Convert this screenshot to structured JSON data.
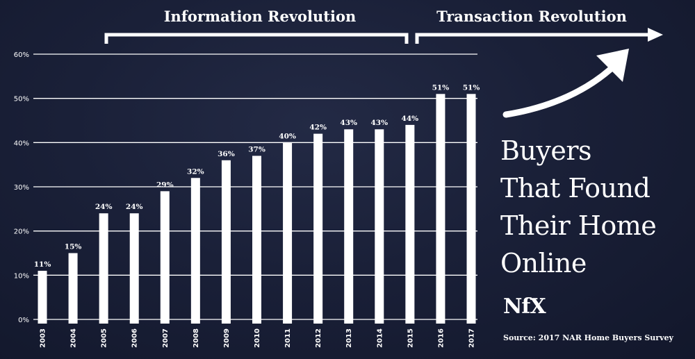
{
  "chart_data": {
    "type": "bar",
    "categories": [
      "2003",
      "2004",
      "2005",
      "2006",
      "2007",
      "2008",
      "2009",
      "2010",
      "2011",
      "2012",
      "2013",
      "2014",
      "2015",
      "2016",
      "2017"
    ],
    "values": [
      11,
      15,
      24,
      24,
      29,
      32,
      36,
      37,
      40,
      42,
      43,
      43,
      44,
      51,
      51
    ],
    "value_labels": [
      "11%",
      "15%",
      "24%",
      "24%",
      "29%",
      "32%",
      "36%",
      "37%",
      "40%",
      "42%",
      "43%",
      "43%",
      "44%",
      "51%",
      "51%"
    ],
    "y_ticks": [
      0,
      10,
      20,
      30,
      40,
      50,
      60
    ],
    "y_tick_labels": [
      "0%",
      "10%",
      "20%",
      "30%",
      "40%",
      "50%",
      "60%"
    ],
    "ylim": [
      0,
      60
    ],
    "grid": true,
    "annotations": {
      "information_revolution": {
        "text": "Information Revolution",
        "from": "2005",
        "to": "2015"
      },
      "transaction_revolution": {
        "text": "Transaction Revolution",
        "from": "2015"
      }
    }
  },
  "headline": [
    "Buyers",
    "That Found",
    "Their Home",
    "Online"
  ],
  "logo_text": "NfX",
  "source_text": "Source: 2017 NAR Home Buyers Survey",
  "colors": {
    "background": "#161c32",
    "foreground": "#ffffff"
  }
}
